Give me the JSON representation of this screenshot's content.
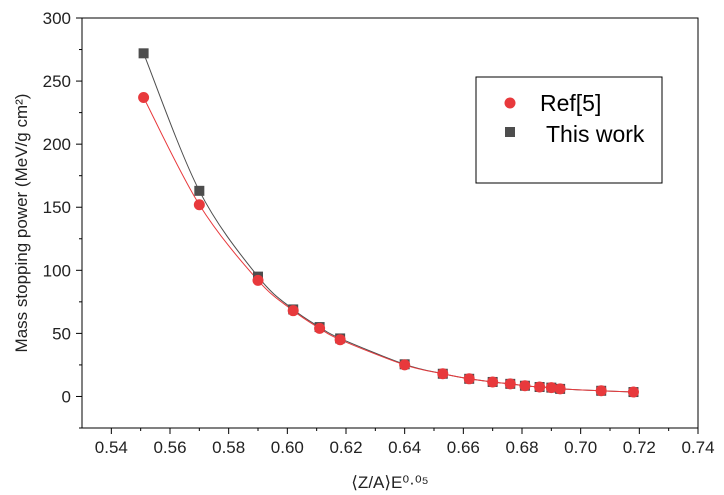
{
  "chart_data": {
    "type": "scatter",
    "title": "",
    "xlabel": "⟨Z/A⟩E⁰·⁰⁵",
    "ylabel": "Mass stopping power (MeV/g cm²)",
    "xlim": [
      0.53,
      0.74
    ],
    "ylim": [
      -25,
      300
    ],
    "x_ticks": [
      0.54,
      0.56,
      0.58,
      0.6,
      0.62,
      0.64,
      0.66,
      0.68,
      0.7,
      0.72,
      0.74
    ],
    "x_tick_labels": [
      "0.54",
      "0.56",
      "0.58",
      "0.60",
      "0.62",
      "0.64",
      "0.66",
      "0.68",
      "0.70",
      "0.72",
      "0.74"
    ],
    "y_ticks": [
      0,
      50,
      100,
      150,
      200,
      250,
      300
    ],
    "y_tick_labels": [
      "0",
      "50",
      "100",
      "150",
      "200",
      "250",
      "300"
    ],
    "grid": false,
    "legend_position": "top-right",
    "series": [
      {
        "name": "Ref[5]",
        "marker": "circle",
        "color": "#e8393c",
        "fit_line": true,
        "x": [
          0.551,
          0.57,
          0.59,
          0.602,
          0.611,
          0.618,
          0.64,
          0.653,
          0.662,
          0.67,
          0.676,
          0.681,
          0.686,
          0.69,
          0.693,
          0.707,
          0.718
        ],
        "y": [
          237,
          152,
          92,
          68,
          54,
          45,
          25,
          18,
          14,
          11.5,
          10,
          8.5,
          7.5,
          7,
          6,
          4.5,
          3.5
        ]
      },
      {
        "name": "This work",
        "marker": "square",
        "color": "#4d4d4d",
        "fit_line": true,
        "x": [
          0.551,
          0.57,
          0.59,
          0.602,
          0.611,
          0.618,
          0.64,
          0.653,
          0.662,
          0.67,
          0.676,
          0.681,
          0.686,
          0.69,
          0.693,
          0.707,
          0.718
        ],
        "y": [
          272,
          163,
          95,
          69,
          55,
          46,
          25.5,
          18,
          14,
          11.5,
          10,
          8.5,
          7.5,
          7,
          6,
          4.5,
          3.5
        ]
      }
    ]
  }
}
